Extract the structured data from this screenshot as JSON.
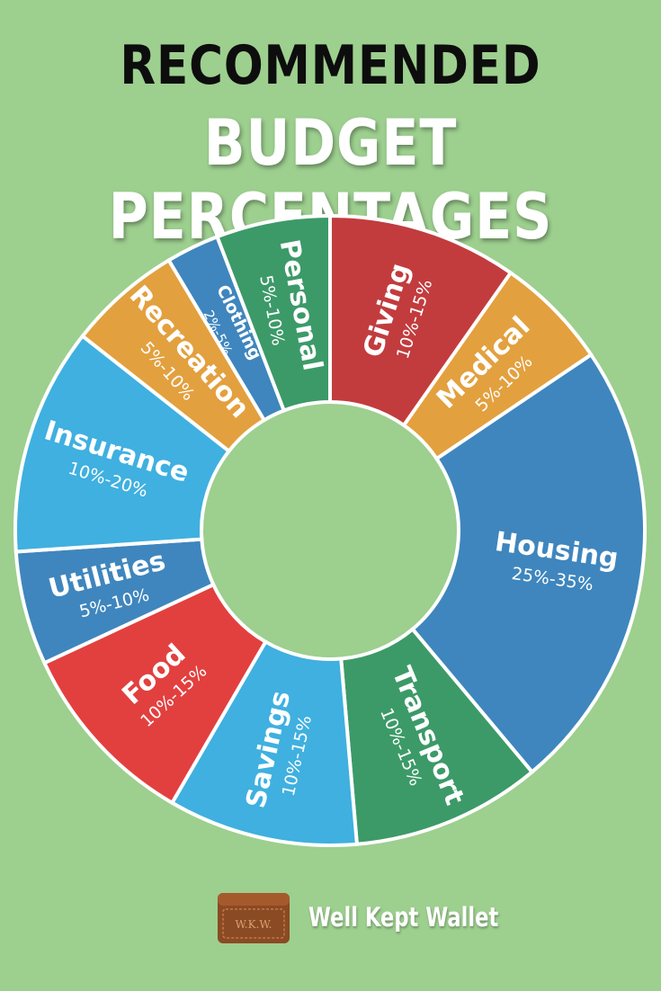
{
  "title": {
    "line1": "RECOMMENDED",
    "line2": "BUDGET PERCENTAGES"
  },
  "colors": {
    "background": "#9dcf8f",
    "blue": "#3f86be",
    "light_blue": "#3fb0e0",
    "green": "#3c9a68",
    "red": "#e2403f",
    "dark_red": "#c23c3e",
    "orange": "#e3a03e"
  },
  "chart_data": {
    "type": "pie",
    "variant": "donut",
    "categories": [
      "Giving",
      "Medical",
      "Housing",
      "Transport",
      "Savings",
      "Food",
      "Utilities",
      "Insurance",
      "Recreation",
      "Clothing",
      "Personal"
    ],
    "ranges": [
      "10%-15%",
      "5%-10%",
      "25%-35%",
      "10%-15%",
      "10%-15%",
      "10%-15%",
      "5%-10%",
      "10%-20%",
      "5%-10%",
      "2%-5%",
      "5%-10%"
    ],
    "values": [
      12.5,
      7.5,
      30,
      12.5,
      12.5,
      12.5,
      7.5,
      15,
      7.5,
      3.5,
      7.5
    ],
    "slice_colors": [
      "#c23c3e",
      "#e3a03e",
      "#3f86be",
      "#3c9a68",
      "#3fb0e0",
      "#e2403f",
      "#3f86be",
      "#3fb0e0",
      "#e3a03e",
      "#3f86be",
      "#3c9a68"
    ]
  },
  "logo": {
    "text": "W.K.W.",
    "brand": "Well Kept Wallet"
  }
}
